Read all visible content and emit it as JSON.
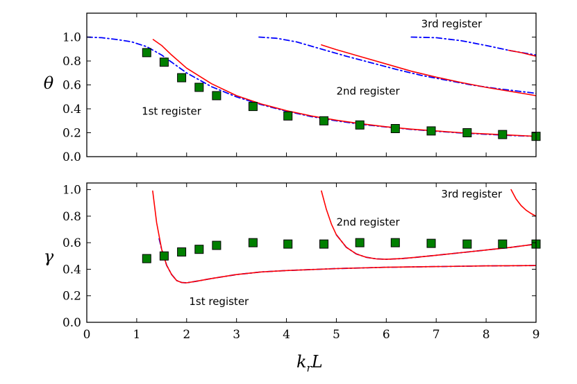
{
  "chart_data": [
    {
      "type": "line",
      "ylabel": "θ",
      "xlabel": "",
      "xlim": [
        0,
        9
      ],
      "ylim": [
        0,
        1.2
      ],
      "xticks": [
        0,
        1,
        2,
        3,
        4,
        5,
        6,
        7,
        8,
        9
      ],
      "yticks": [
        "0.0",
        "0.2",
        "0.4",
        "0.6",
        "0.8",
        "1.0"
      ],
      "annotations": [
        {
          "text": "1st register",
          "x": 1.1,
          "y": 0.35
        },
        {
          "text": "2nd register",
          "x": 5.0,
          "y": 0.52
        },
        {
          "text": "3rd register",
          "x": 6.7,
          "y": 1.08
        }
      ],
      "series": [
        {
          "name": "1st register (solid)",
          "style": "solid",
          "color": "#ff0000",
          "x": [
            1.33,
            1.5,
            1.7,
            2.0,
            2.5,
            3.0,
            3.5,
            4.0,
            4.5,
            5.0,
            5.5,
            6.0,
            6.5,
            7.0,
            7.5,
            8.0,
            8.5,
            9.0
          ],
          "y": [
            0.98,
            0.93,
            0.85,
            0.74,
            0.61,
            0.51,
            0.44,
            0.385,
            0.34,
            0.305,
            0.275,
            0.25,
            0.23,
            0.215,
            0.2,
            0.19,
            0.18,
            0.17
          ]
        },
        {
          "name": "1st register (dash-dot)",
          "style": "dashdot",
          "color": "#0000ff",
          "x": [
            0,
            0.3,
            0.6,
            0.9,
            1.2,
            1.5,
            2.0,
            2.5,
            3.0,
            3.5,
            4.0,
            4.5,
            5.0,
            5.5,
            6.0,
            6.5,
            7.0,
            7.5,
            8.0,
            8.5,
            9.0
          ],
          "y": [
            1.0,
            0.995,
            0.98,
            0.96,
            0.92,
            0.85,
            0.7,
            0.585,
            0.5,
            0.435,
            0.38,
            0.335,
            0.3,
            0.27,
            0.248,
            0.228,
            0.212,
            0.198,
            0.187,
            0.177,
            0.17
          ]
        },
        {
          "name": "2nd register (solid)",
          "style": "solid",
          "color": "#ff0000",
          "x": [
            4.7,
            5.0,
            5.5,
            6.0,
            6.5,
            7.0,
            7.5,
            8.0,
            8.5,
            9.0
          ],
          "y": [
            0.935,
            0.895,
            0.835,
            0.775,
            0.715,
            0.665,
            0.62,
            0.58,
            0.545,
            0.51
          ]
        },
        {
          "name": "2nd register (dash-dot)",
          "style": "dashdot",
          "color": "#0000ff",
          "x": [
            3.45,
            3.8,
            4.2,
            4.7,
            5.2,
            5.7,
            6.2,
            6.7,
            7.2,
            7.7,
            8.2,
            8.7,
            9.0
          ],
          "y": [
            1.0,
            0.99,
            0.96,
            0.9,
            0.84,
            0.785,
            0.73,
            0.68,
            0.64,
            0.6,
            0.57,
            0.545,
            0.53
          ]
        },
        {
          "name": "3rd register (solid)",
          "style": "solid",
          "color": "#ff0000",
          "x": [
            8.45,
            8.7,
            9.0
          ],
          "y": [
            0.89,
            0.87,
            0.84
          ]
        },
        {
          "name": "3rd register (dash-dot)",
          "style": "dashdot",
          "color": "#0000ff",
          "x": [
            6.5,
            7.0,
            7.5,
            8.0,
            8.5,
            9.0
          ],
          "y": [
            1.0,
            0.995,
            0.97,
            0.93,
            0.885,
            0.85
          ]
        },
        {
          "name": "data",
          "style": "square",
          "color": "#007f00",
          "x": [
            1.2,
            1.55,
            1.9,
            2.25,
            2.6,
            3.33,
            4.03,
            4.75,
            5.47,
            6.18,
            6.9,
            7.62,
            8.33,
            9.0
          ],
          "y": [
            0.87,
            0.79,
            0.66,
            0.58,
            0.51,
            0.42,
            0.34,
            0.3,
            0.265,
            0.235,
            0.215,
            0.2,
            0.185,
            0.17
          ]
        }
      ]
    },
    {
      "type": "line",
      "ylabel": "γ",
      "xlabel": "k_r L",
      "xlim": [
        0,
        9
      ],
      "ylim": [
        0,
        1.05
      ],
      "xticks": [
        0,
        1,
        2,
        3,
        4,
        5,
        6,
        7,
        8,
        9
      ],
      "yticks": [
        "0.0",
        "0.2",
        "0.4",
        "0.6",
        "0.8",
        "1.0"
      ],
      "annotations": [
        {
          "text": "1st register",
          "x": 2.05,
          "y": 0.13
        },
        {
          "text": "2nd register",
          "x": 5.0,
          "y": 0.73
        },
        {
          "text": "3rd register",
          "x": 7.1,
          "y": 0.94
        }
      ],
      "series": [
        {
          "name": "1st register (solid)",
          "style": "solid",
          "color": "#ff0000",
          "x": [
            1.32,
            1.4,
            1.5,
            1.6,
            1.7,
            1.8,
            1.9,
            2.0,
            2.2,
            2.5,
            3.0,
            3.5,
            4.0,
            5.0,
            6.0,
            7.0,
            8.0,
            9.0
          ],
          "y": [
            0.99,
            0.75,
            0.55,
            0.43,
            0.36,
            0.315,
            0.3,
            0.298,
            0.31,
            0.33,
            0.36,
            0.38,
            0.39,
            0.405,
            0.415,
            0.42,
            0.425,
            0.428
          ]
        },
        {
          "name": "1st register (dash-dot)",
          "style": "dashdot",
          "color": "#0000ff",
          "x": [
            1.45,
            1.5,
            1.6,
            1.7,
            1.8,
            1.9,
            2.0,
            2.2,
            2.5,
            3.0,
            3.5,
            4.0,
            5.0,
            6.0,
            7.0,
            8.0,
            9.0
          ],
          "y": [
            0.63,
            0.55,
            0.43,
            0.36,
            0.315,
            0.3,
            0.298,
            0.31,
            0.33,
            0.36,
            0.38,
            0.39,
            0.405,
            0.415,
            0.42,
            0.425,
            0.428
          ]
        },
        {
          "name": "2nd register (solid)",
          "style": "solid",
          "color": "#ff0000",
          "x": [
            4.7,
            4.8,
            4.9,
            5.0,
            5.2,
            5.4,
            5.6,
            5.8,
            6.0,
            6.3,
            6.6,
            7.0,
            7.5,
            8.0,
            8.5,
            9.0
          ],
          "y": [
            0.99,
            0.85,
            0.74,
            0.66,
            0.565,
            0.515,
            0.49,
            0.478,
            0.475,
            0.48,
            0.49,
            0.505,
            0.525,
            0.545,
            0.565,
            0.59
          ]
        },
        {
          "name": "2nd register (dash-dot)",
          "style": "dashdot",
          "color": "#0000ff",
          "x": [
            5.0,
            5.2,
            5.4,
            5.6,
            5.8,
            6.0,
            6.3,
            6.6,
            7.0,
            7.5,
            8.0,
            8.5,
            9.0
          ],
          "y": [
            0.66,
            0.565,
            0.515,
            0.49,
            0.478,
            0.475,
            0.48,
            0.49,
            0.505,
            0.525,
            0.545,
            0.565,
            0.59
          ]
        },
        {
          "name": "3rd register (solid)",
          "style": "solid",
          "color": "#ff0000",
          "x": [
            8.5,
            8.6,
            8.7,
            8.8,
            8.9,
            9.0
          ],
          "y": [
            1.0,
            0.93,
            0.88,
            0.845,
            0.82,
            0.8
          ]
        },
        {
          "name": "data",
          "style": "square",
          "color": "#007f00",
          "x": [
            1.2,
            1.55,
            1.9,
            2.25,
            2.6,
            3.33,
            4.03,
            4.75,
            5.47,
            6.18,
            6.9,
            7.62,
            8.33,
            9.0
          ],
          "y": [
            0.48,
            0.5,
            0.53,
            0.55,
            0.58,
            0.6,
            0.59,
            0.59,
            0.6,
            0.6,
            0.595,
            0.59,
            0.59,
            0.59
          ]
        }
      ]
    }
  ]
}
